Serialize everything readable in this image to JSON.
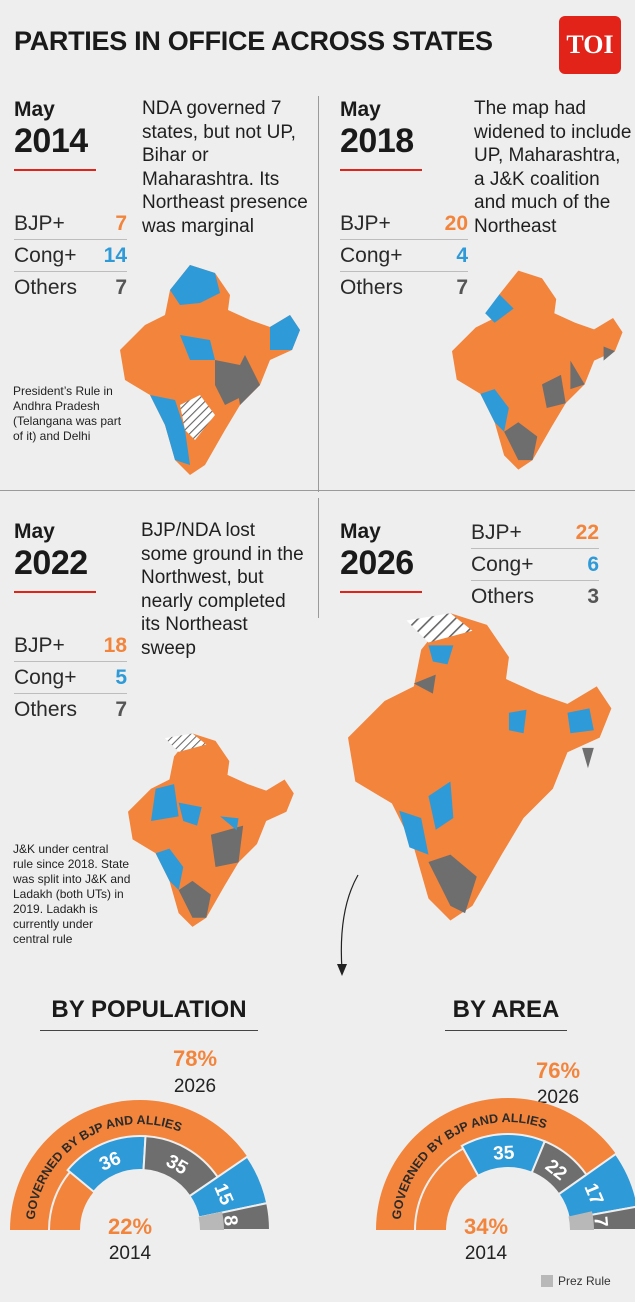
{
  "header": {
    "title": "PARTIES IN OFFICE ACROSS STATES",
    "logo": "TOI"
  },
  "colors": {
    "bjp": "#f2843c",
    "cong": "#2f9ad8",
    "others": "#6e6e6e",
    "prez_rule": "#b8b8b8",
    "accent": "#e2231a"
  },
  "labels": {
    "bjp": "BJP+",
    "cong": "Cong+",
    "others": "Others"
  },
  "panels": [
    {
      "month": "May",
      "year": "2014",
      "bjp": "7",
      "cong": "14",
      "others": "7",
      "description": "NDA governed 7 states, but not UP, Bihar or Maharashtra. Its Northeast presence was marginal",
      "note": "President’s Rule in Andhra Pradesh (Telangana was part of it) and Delhi"
    },
    {
      "month": "May",
      "year": "2018",
      "bjp": "20",
      "cong": "4",
      "others": "7",
      "description": "The map had widened to include UP, Maharashtra, a J&K coalition and much of the Northeast"
    },
    {
      "month": "May",
      "year": "2022",
      "bjp": "18",
      "cong": "5",
      "others": "7",
      "description": "BJP/NDA lost some ground in the Northwest, but nearly completed its Northeast sweep",
      "note": "J&K under central rule since 2018. State was split into J&K and Ladakh (both UTs) in 2019. Ladakh is currently under central rule"
    },
    {
      "month": "May",
      "year": "2026",
      "bjp": "22",
      "cong": "6",
      "others": "3"
    }
  ],
  "gauges": [
    {
      "title": "BY POPULATION",
      "pct_2026": "78%",
      "year_2026": "2026",
      "pct_2014": "22%",
      "year_2014": "2014",
      "arc_label": "GOVERNED BY BJP AND ALLIES",
      "segments": [
        {
          "party": "cong",
          "value": 36
        },
        {
          "party": "others",
          "value": 35
        },
        {
          "party": "cong",
          "value": 15
        },
        {
          "party": "others",
          "value": 8
        }
      ],
      "value_labels": [
        "36",
        "35",
        "15",
        "8"
      ]
    },
    {
      "title": "BY AREA",
      "pct_2026": "76%",
      "year_2026": "2026",
      "pct_2014": "34%",
      "year_2014": "2014",
      "arc_label": "GOVERNED BY BJP AND ALLIES",
      "segments": [
        {
          "party": "cong",
          "value": 35
        },
        {
          "party": "others",
          "value": 22
        },
        {
          "party": "cong",
          "value": 17
        },
        {
          "party": "others",
          "value": 7
        }
      ],
      "value_labels": [
        "35",
        "22",
        "17",
        "7"
      ]
    }
  ],
  "legend": {
    "prez_rule": "Prez Rule"
  }
}
